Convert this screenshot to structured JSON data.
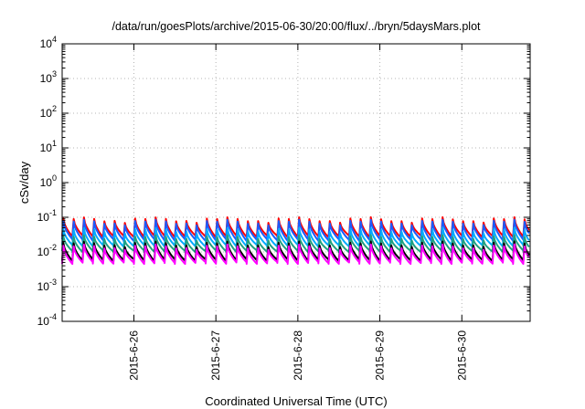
{
  "chart_data": {
    "type": "line",
    "title": "/data/run/goesPlots/archive/2015-06-30/20:00/flux/../bryn/5daysMars.plot",
    "xlabel": "Coordinated Universal Time (UTC)",
    "ylabel": "cSv/day",
    "yscale": "log",
    "ylim": [
      0.0001,
      10000
    ],
    "y_ticks": [
      {
        "base": "10",
        "exp": "-4"
      },
      {
        "base": "10",
        "exp": "-3"
      },
      {
        "base": "10",
        "exp": "-2"
      },
      {
        "base": "10",
        "exp": "-1"
      },
      {
        "base": "10",
        "exp": "0"
      },
      {
        "base": "10",
        "exp": "1"
      },
      {
        "base": "10",
        "exp": "2"
      },
      {
        "base": "10",
        "exp": "3"
      },
      {
        "base": "10",
        "exp": "4"
      }
    ],
    "xlim": [
      "2015-06-25T03:00",
      "2015-06-30T20:00"
    ],
    "x_ticks": [
      "2015-6-26",
      "2015-6-27",
      "2015-6-28",
      "2015-6-29",
      "2015-6-30"
    ],
    "grid": true,
    "cycle_hours": 3,
    "series": [
      {
        "color": "#ff0000",
        "peak": 0.085,
        "trough": 0.028
      },
      {
        "color": "#1a5cff",
        "peak": 0.072,
        "trough": 0.022
      },
      {
        "color": "#00aaff",
        "peak": 0.042,
        "trough": 0.015
      },
      {
        "color": "#20a080",
        "peak": 0.026,
        "trough": 0.0105
      },
      {
        "color": "#000000",
        "peak": 0.017,
        "trough": 0.0058
      },
      {
        "color": "#ff00ff",
        "peak": 0.014,
        "trough": 0.0048
      }
    ]
  }
}
